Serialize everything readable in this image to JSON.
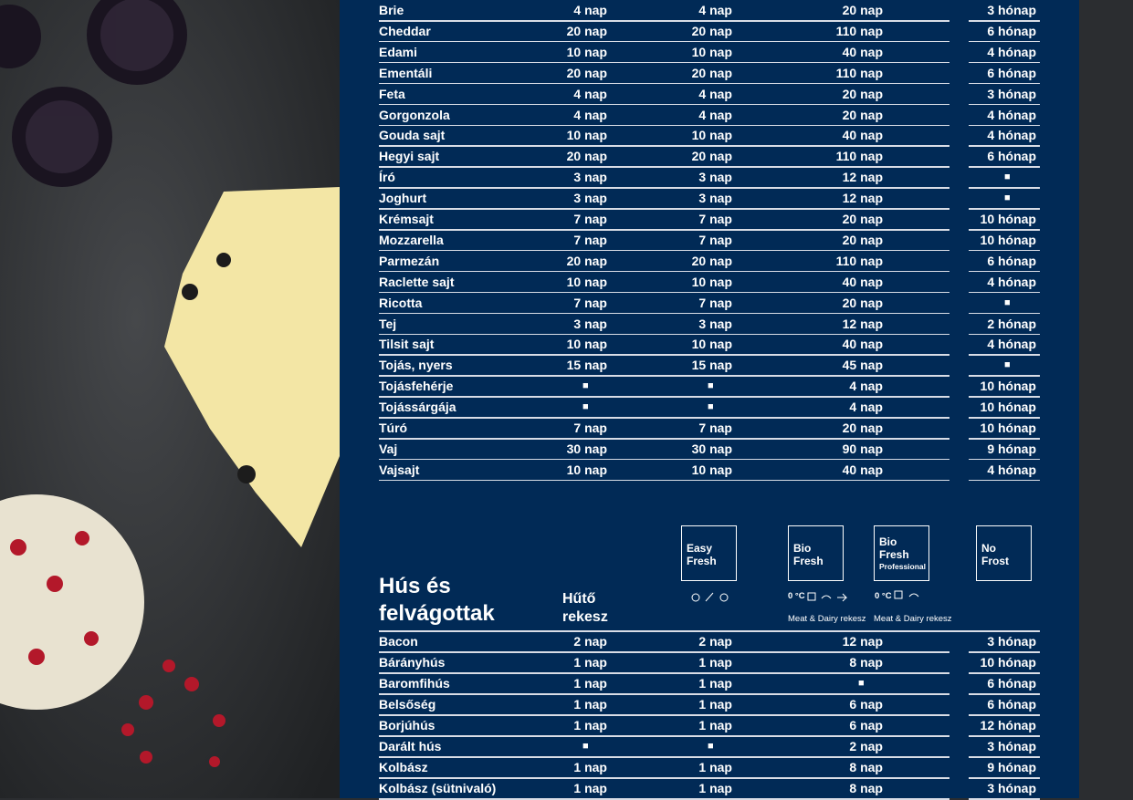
{
  "dairy_table": {
    "rows": [
      [
        "Brie",
        "4 nap",
        "4 nap",
        "20 nap",
        "3 hónap"
      ],
      [
        "Cheddar",
        "20 nap",
        "20 nap",
        "110 nap",
        "6 hónap"
      ],
      [
        "Edami",
        "10 nap",
        "10 nap",
        "40 nap",
        "4 hónap"
      ],
      [
        "Ementáli",
        "20 nap",
        "20 nap",
        "110 nap",
        "6 hónap"
      ],
      [
        "Feta",
        "4 nap",
        "4 nap",
        "20 nap",
        "3 hónap"
      ],
      [
        "Gorgonzola",
        "4 nap",
        "4 nap",
        "20 nap",
        "4 hónap"
      ],
      [
        "Gouda sajt",
        "10 nap",
        "10 nap",
        "40 nap",
        "4 hónap"
      ],
      [
        "Hegyi sajt",
        "20 nap",
        "20 nap",
        "110 nap",
        "6 hónap"
      ],
      [
        "Író",
        "3 nap",
        "3 nap",
        "12 nap",
        "■"
      ],
      [
        "Joghurt",
        "3 nap",
        "3 nap",
        "12 nap",
        "■"
      ],
      [
        "Krémsajt",
        "7 nap",
        "7 nap",
        "20 nap",
        "10 hónap"
      ],
      [
        "Mozzarella",
        "7 nap",
        "7 nap",
        "20 nap",
        "10 hónap"
      ],
      [
        "Parmezán",
        "20 nap",
        "20 nap",
        "110 nap",
        "6 hónap"
      ],
      [
        "Raclette sajt",
        "10 nap",
        "10 nap",
        "40 nap",
        "4 hónap"
      ],
      [
        "Ricotta",
        "7 nap",
        "7 nap",
        "20 nap",
        "■"
      ],
      [
        "Tej",
        "3 nap",
        "3 nap",
        "12 nap",
        "2 hónap"
      ],
      [
        "Tilsit sajt",
        "10 nap",
        "10 nap",
        "40 nap",
        "4 hónap"
      ],
      [
        "Tojás, nyers",
        "15 nap",
        "15 nap",
        "45 nap",
        "■"
      ],
      [
        "Tojásfehérje",
        "■",
        "■",
        "4 nap",
        "10 hónap"
      ],
      [
        "Tojássárgája",
        "■",
        "■",
        "4 nap",
        "10 hónap"
      ],
      [
        "Túró",
        "7 nap",
        "7 nap",
        "20 nap",
        "10 hónap"
      ],
      [
        "Vaj",
        "30 nap",
        "30 nap",
        "90 nap",
        "9 hónap"
      ],
      [
        "Vajsajt",
        "10 nap",
        "10 nap",
        "40 nap",
        "4 hónap"
      ]
    ]
  },
  "meat_section": {
    "title": "Hús és felvágottak",
    "column_header": "Hűtő rekesz",
    "compartments": [
      {
        "label": "Easy Fresh"
      },
      {
        "label": "Bio Fresh",
        "temperature": "0 °C",
        "caption": "Meat & Dairy rekesz"
      },
      {
        "label": "Bio Fresh",
        "sublabel": "Professional",
        "temperature": "0 °C",
        "caption": "Meat & Dairy rekesz"
      },
      {
        "label": "No Frost"
      }
    ],
    "rows": [
      [
        "Bacon",
        "2 nap",
        "2 nap",
        "12 nap",
        "3 hónap"
      ],
      [
        "Bárányhús",
        "1 nap",
        "1 nap",
        "8 nap",
        "10 hónap"
      ],
      [
        "Baromfihús",
        "1 nap",
        "1 nap",
        "■",
        "6 hónap"
      ],
      [
        "Belsőség",
        "1 nap",
        "1 nap",
        "6 nap",
        "6 hónap"
      ],
      [
        "Borjúhús",
        "1 nap",
        "1 nap",
        "6 nap",
        "12 hónap"
      ],
      [
        "Darált hús",
        "■",
        "■",
        "2 nap",
        "3 hónap"
      ],
      [
        "Kolbász",
        "1 nap",
        "1 nap",
        "8 nap",
        "9 hónap"
      ],
      [
        "Kolbász (sütnivaló)",
        "1 nap",
        "1 nap",
        "8 nap",
        "3 hónap"
      ]
    ]
  }
}
